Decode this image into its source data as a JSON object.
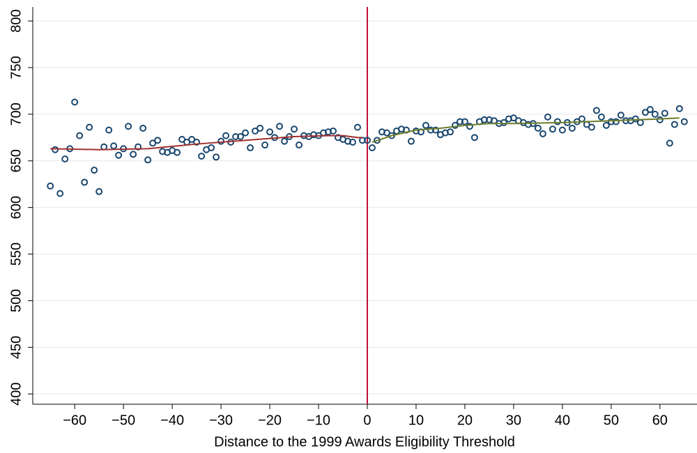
{
  "chart_data": {
    "type": "scatter",
    "x_label": "Distance to the 1999 Awards Eligibility Threshold",
    "xlim": [
      -68.6,
      67.6
    ],
    "ylim": [
      389,
      815
    ],
    "xticks": [
      {
        "value": -60,
        "label": "−60"
      },
      {
        "value": -50,
        "label": "−50"
      },
      {
        "value": -40,
        "label": "−40"
      },
      {
        "value": -30,
        "label": "−30"
      },
      {
        "value": -20,
        "label": "−20"
      },
      {
        "value": -10,
        "label": "−10"
      },
      0,
      10,
      20,
      30,
      40,
      50,
      60
    ],
    "yticks": [
      400,
      450,
      500,
      550,
      600,
      650,
      700,
      750,
      800
    ],
    "grid": true,
    "reference_lines": [
      {
        "x": 0,
        "color": "#c0103a"
      }
    ],
    "series": [
      {
        "type": "scatter",
        "color": "#1a476f",
        "x": [
          -65,
          -64,
          -63,
          -62,
          -61,
          -60,
          -59,
          -58,
          -57,
          -56,
          -55,
          -54,
          -53,
          -52,
          -51,
          -50,
          -49,
          -48,
          -47,
          -46,
          -45,
          -44,
          -43,
          -42,
          -41,
          -40,
          -39,
          -38,
          -37,
          -36,
          -35,
          -34,
          -33,
          -32,
          -31,
          -30,
          -29,
          -28,
          -27,
          -26,
          -25,
          -24,
          -23,
          -22,
          -21,
          -20,
          -19,
          -18,
          -17,
          -16,
          -15,
          -14,
          -13,
          -12,
          -11,
          -10,
          -9,
          -8,
          -7,
          -6,
          -5,
          -4,
          -3,
          -2,
          -1
        ],
        "values": [
          623,
          662,
          615,
          652,
          663,
          713,
          677,
          627,
          686,
          640,
          617,
          665,
          683,
          666,
          656,
          663,
          687,
          657,
          665,
          685,
          651,
          669,
          672,
          660,
          659,
          661,
          659,
          673,
          670,
          673,
          670,
          655,
          662,
          664,
          654,
          671,
          677,
          670,
          676,
          676,
          680,
          664,
          682,
          685,
          667,
          681,
          675,
          687,
          671,
          676,
          684,
          667,
          677,
          676,
          678,
          677,
          680,
          681,
          682,
          675,
          673,
          671,
          670,
          686,
          672
        ]
      },
      {
        "type": "scatter",
        "color": "#1a476f",
        "x": [
          0,
          1,
          2,
          3,
          4,
          5,
          6,
          7,
          8,
          9,
          10,
          11,
          12,
          13,
          14,
          15,
          16,
          17,
          18,
          19,
          20,
          21,
          22,
          23,
          24,
          25,
          26,
          27,
          28,
          29,
          30,
          31,
          32,
          33,
          34,
          35,
          36,
          37,
          38,
          39,
          40,
          41,
          42,
          43,
          44,
          45,
          46,
          47,
          48,
          49,
          50,
          51,
          52,
          53,
          54,
          55,
          56,
          57,
          58,
          59,
          60,
          61,
          62,
          63,
          64,
          65
        ],
        "values": [
          672,
          664,
          672,
          681,
          680,
          677,
          682,
          684,
          683,
          671,
          682,
          681,
          688,
          683,
          683,
          678,
          680,
          681,
          688,
          692,
          692,
          687,
          675,
          692,
          694,
          694,
          693,
          690,
          691,
          695,
          696,
          693,
          691,
          689,
          690,
          685,
          679,
          697,
          684,
          692,
          683,
          691,
          685,
          692,
          695,
          689,
          686,
          704,
          697,
          688,
          692,
          692,
          699,
          693,
          693,
          695,
          691,
          702,
          705,
          700,
          694,
          701,
          669,
          689,
          706,
          692
        ]
      },
      {
        "type": "line",
        "color": "#a0302e",
        "x": [
          -65,
          -55,
          -45,
          -35,
          -25,
          -15,
          -8,
          -5,
          -2,
          -1
        ],
        "values": [
          663,
          662,
          663,
          668,
          672,
          676,
          677,
          677,
          675,
          675
        ]
      },
      {
        "type": "line",
        "color": "#6b7d2a",
        "x": [
          1,
          5,
          10,
          15,
          20,
          25,
          30,
          40,
          50,
          60,
          64
        ],
        "values": [
          670,
          677,
          683,
          685,
          688,
          690,
          690,
          691,
          693,
          695,
          696
        ]
      }
    ]
  }
}
